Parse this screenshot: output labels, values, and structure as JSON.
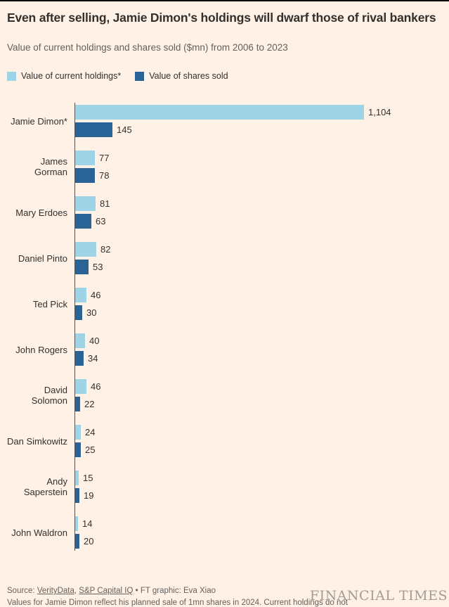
{
  "chart_data": {
    "type": "bar",
    "orientation": "horizontal",
    "title": "Even after selling, Jamie Dimon's holdings will dwarf those of rival bankers",
    "subtitle": "Value of current holdings and shares sold ($mn) from 2006 to 2023",
    "legend_position": "top",
    "grid": false,
    "xlim": [
      0,
      1180
    ],
    "value_labels": true,
    "categories": [
      "Jamie Dimon*",
      "James Gorman",
      "Mary Erdoes",
      "Daniel Pinto",
      "Ted Pick",
      "John Rogers",
      "David Solomon",
      "Dan Simkowitz",
      "Andy Saperstein",
      "John Waldron"
    ],
    "series": [
      {
        "name": "Value of current holdings*",
        "color": "#9fd4e6",
        "values": [
          1104,
          77,
          81,
          82,
          46,
          40,
          46,
          24,
          15,
          14
        ]
      },
      {
        "name": "Value of shares sold",
        "color": "#2a6496",
        "values": [
          145,
          78,
          63,
          53,
          30,
          34,
          22,
          25,
          19,
          20
        ]
      }
    ]
  },
  "footer": {
    "source_prefix": "Source: ",
    "source_link_1": "VerityData",
    "source_separator": ", ",
    "source_link_2": "S&P Capital IQ",
    "source_suffix": " • FT graphic: Eva Xiao",
    "note": "Values for Jamie Dimon reflect his planned sale of 1mn shares in 2024. Current holdings do not",
    "watermark": "FINANCIAL TIMES"
  }
}
